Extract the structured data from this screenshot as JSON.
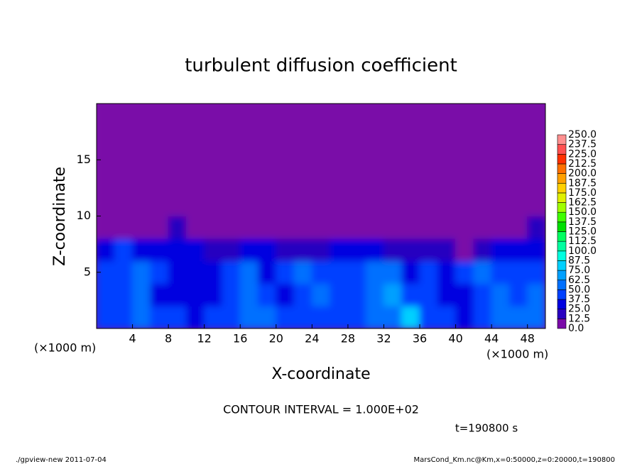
{
  "chart_data": {
    "type": "heatmap",
    "title": "turbulent diffusion coefficient",
    "xlabel": "X-coordinate",
    "ylabel": "Z-coordinate",
    "x_unit_left": "(×1000 m)",
    "x_unit_right": "(×1000 m)",
    "contour_note": "CONTOUR INTERVAL = 1.000E+02",
    "time_note": "t=190800 s",
    "footer_left": "./gpview-new  2011-07-04",
    "footer_right": "MarsCond_Km.nc@Km,x=0:50000,z=0:20000,t=190800",
    "xlim": [
      0,
      50
    ],
    "ylim": [
      0,
      20
    ],
    "xticks": [
      4,
      8,
      12,
      16,
      20,
      24,
      28,
      32,
      36,
      40,
      44,
      48
    ],
    "yticks": [
      5,
      10,
      15
    ],
    "xbins": [
      0,
      2,
      4,
      6,
      8,
      10,
      12,
      14,
      16,
      18,
      20,
      22,
      24,
      26,
      28,
      30,
      32,
      34,
      36,
      38,
      40,
      42,
      44,
      46,
      48,
      50
    ],
    "ybins": [
      0,
      2,
      4,
      6,
      8,
      10,
      12,
      14,
      16,
      18,
      20
    ],
    "values": [
      [
        45,
        40,
        50,
        45,
        40,
        35,
        40,
        45,
        50,
        55,
        45,
        40,
        40,
        45,
        45,
        50,
        60,
        75,
        40,
        40,
        35,
        40,
        55,
        60,
        55
      ],
      [
        45,
        40,
        55,
        35,
        30,
        25,
        30,
        40,
        55,
        40,
        35,
        45,
        50,
        45,
        40,
        55,
        65,
        40,
        45,
        35,
        35,
        45,
        50,
        45,
        50
      ],
      [
        40,
        45,
        50,
        40,
        30,
        30,
        35,
        45,
        50,
        35,
        40,
        50,
        45,
        40,
        45,
        60,
        50,
        35,
        40,
        30,
        45,
        50,
        45,
        40,
        45
      ],
      [
        35,
        40,
        30,
        25,
        30,
        25,
        20,
        15,
        35,
        30,
        15,
        20,
        20,
        25,
        25,
        30,
        20,
        15,
        15,
        20,
        10,
        20,
        25,
        30,
        35
      ],
      [
        0,
        0,
        0,
        0,
        15,
        0,
        0,
        0,
        0,
        0,
        0,
        0,
        0,
        0,
        0,
        0,
        0,
        0,
        0,
        0,
        0,
        0,
        0,
        0,
        15
      ],
      [
        5,
        0,
        0,
        0,
        0,
        0,
        0,
        0,
        0,
        0,
        0,
        0,
        0,
        0,
        0,
        0,
        0,
        0,
        0,
        0,
        0,
        0,
        0,
        0,
        0
      ],
      [
        0,
        0,
        0,
        0,
        0,
        0,
        0,
        0,
        0,
        0,
        0,
        0,
        0,
        0,
        0,
        0,
        0,
        0,
        0,
        0,
        0,
        0,
        0,
        0,
        0
      ],
      [
        0,
        0,
        0,
        0,
        0,
        0,
        0,
        0,
        0,
        0,
        0,
        0,
        0,
        0,
        0,
        0,
        0,
        0,
        0,
        0,
        0,
        0,
        0,
        0,
        0
      ],
      [
        0,
        0,
        0,
        0,
        0,
        0,
        0,
        0,
        0,
        0,
        0,
        0,
        0,
        0,
        0,
        0,
        0,
        0,
        0,
        0,
        0,
        0,
        0,
        0,
        0
      ],
      [
        0,
        0,
        0,
        0,
        0,
        0,
        0,
        0,
        0,
        0,
        0,
        0,
        0,
        0,
        0,
        0,
        0,
        0,
        0,
        0,
        0,
        0,
        0,
        0,
        0
      ]
    ],
    "colorbar_ticks": [
      {
        "value": 0,
        "label": "0.0"
      },
      {
        "value": 12.5,
        "label": "12.5"
      },
      {
        "value": 25,
        "label": "25.0"
      },
      {
        "value": 37.5,
        "label": "37.5"
      },
      {
        "value": 50,
        "label": "50.0"
      },
      {
        "value": 62.5,
        "label": "62.5"
      },
      {
        "value": 75,
        "label": "75.0"
      },
      {
        "value": 87.5,
        "label": "87.5"
      },
      {
        "value": 100,
        "label": "100.0"
      },
      {
        "value": 112.5,
        "label": "112.5"
      },
      {
        "value": 125,
        "label": "125.0"
      },
      {
        "value": 137.5,
        "label": "137.5"
      },
      {
        "value": 150,
        "label": "150.0"
      },
      {
        "value": 162.5,
        "label": "162.5"
      },
      {
        "value": 175,
        "label": "175.0"
      },
      {
        "value": 187.5,
        "label": "187.5"
      },
      {
        "value": 200,
        "label": "200.0"
      },
      {
        "value": 212.5,
        "label": "212.5"
      },
      {
        "value": 225,
        "label": "225.0"
      },
      {
        "value": 237.5,
        "label": "237.5"
      },
      {
        "value": 250,
        "label": "250.0"
      }
    ],
    "colors": [
      "#7a0aa8",
      "#2800c0",
      "#0000e0",
      "#0040ff",
      "#0070ff",
      "#00a0ff",
      "#00d0ff",
      "#00ffe0",
      "#00ffa0",
      "#00ff60",
      "#00e000",
      "#40ff00",
      "#a0ff00",
      "#e0f000",
      "#ffd000",
      "#ffa000",
      "#ff7000",
      "#ff3000",
      "#ff5050",
      "#ff9090"
    ]
  }
}
